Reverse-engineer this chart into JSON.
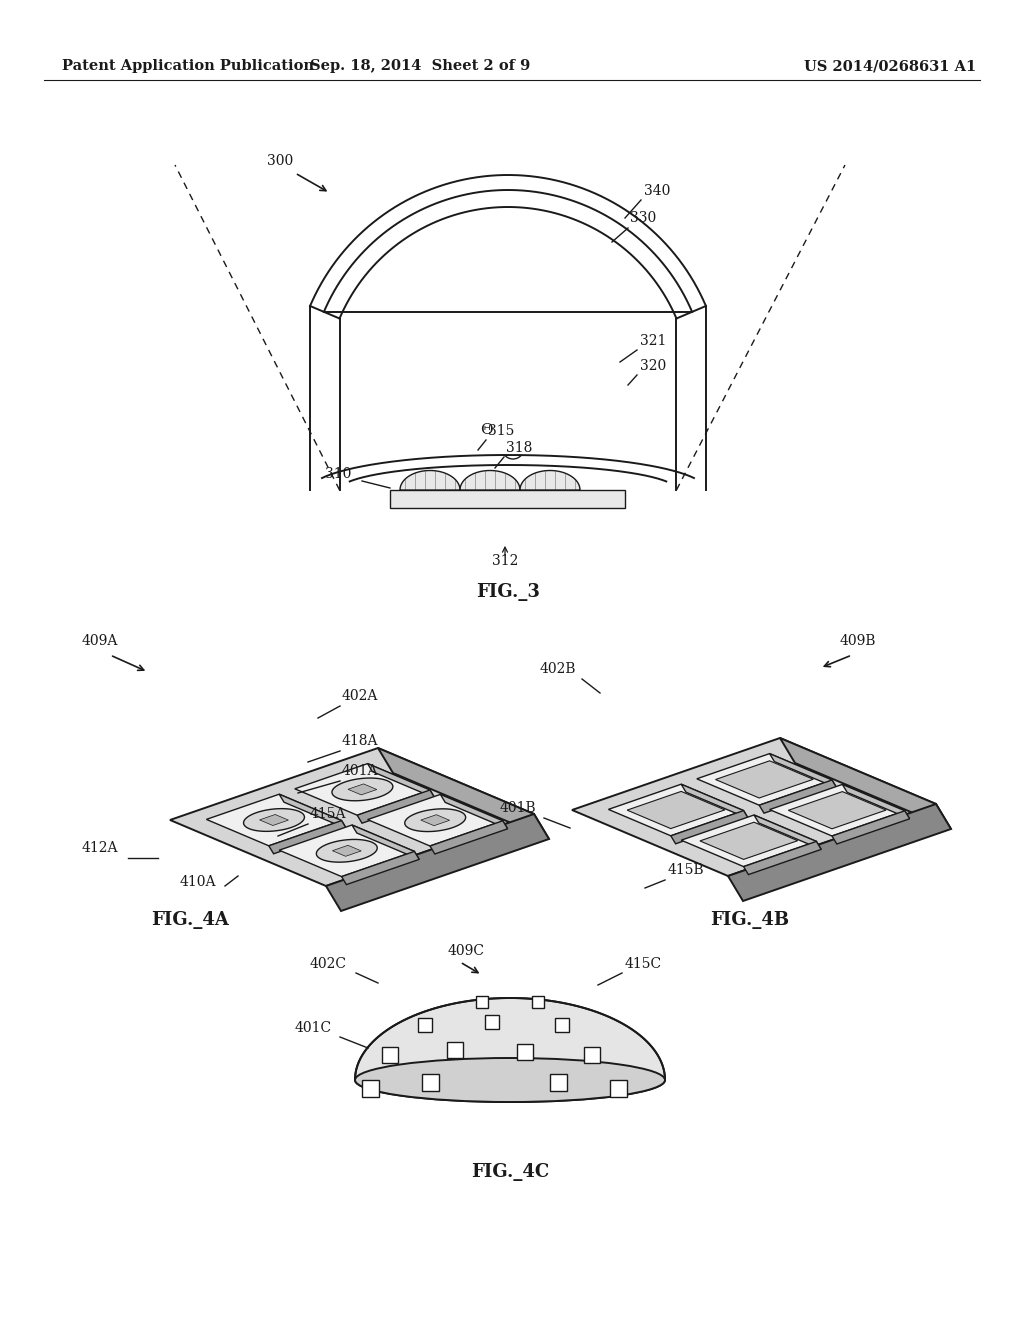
{
  "header_left": "Patent Application Publication",
  "header_mid": "Sep. 18, 2014  Sheet 2 of 9",
  "header_right": "US 2014/0268631 A1",
  "fig3_label": "FIG._3",
  "fig4a_label": "FIG._4A",
  "fig4b_label": "FIG._4B",
  "fig4c_label": "FIG._4C",
  "bg_color": "#ffffff",
  "line_color": "#1a1a1a",
  "gray_light": "#e8e8e8",
  "gray_mid": "#c0c0c0",
  "gray_dark": "#909090"
}
